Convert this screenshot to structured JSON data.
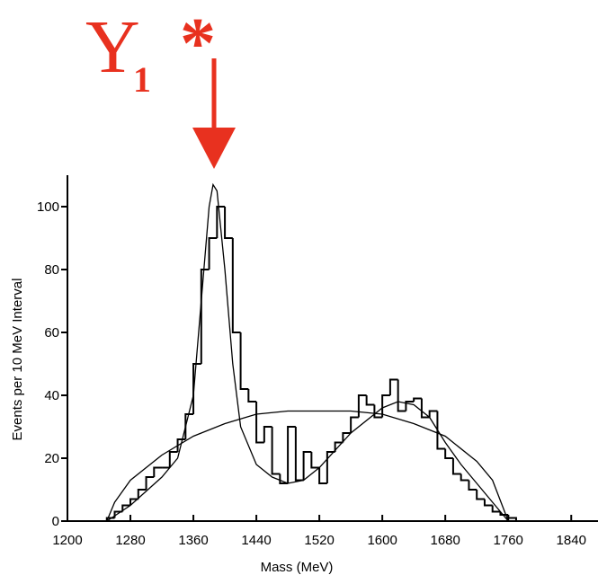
{
  "chart_data": {
    "type": "histogram",
    "annotation": {
      "letter": "Y",
      "subscript": "1",
      "star": "*"
    },
    "x_label": "Mass (MeV)",
    "y_label": "Events per 10 MeV Interval",
    "bins": [
      1250,
      1260,
      1270,
      1280,
      1290,
      1300,
      1310,
      1320,
      1330,
      1340,
      1350,
      1360,
      1370,
      1380,
      1390,
      1400,
      1410,
      1420,
      1430,
      1440,
      1450,
      1460,
      1470,
      1480,
      1490,
      1500,
      1510,
      1520,
      1530,
      1540,
      1550,
      1560,
      1570,
      1580,
      1590,
      1600,
      1610,
      1620,
      1630,
      1640,
      1650,
      1660,
      1670,
      1680,
      1690,
      1700,
      1710,
      1720,
      1730,
      1740,
      1750,
      1760,
      1770
    ],
    "counts": [
      1,
      3,
      5,
      7,
      10,
      14,
      17,
      17,
      22,
      26,
      34,
      50,
      80,
      90,
      100,
      90,
      60,
      42,
      38,
      25,
      30,
      15,
      12,
      30,
      13,
      22,
      17,
      12,
      22,
      25,
      28,
      33,
      40,
      37,
      33,
      40,
      45,
      35,
      38,
      39,
      33,
      35,
      23,
      20,
      15,
      13,
      10,
      7,
      5,
      3,
      2,
      1
    ],
    "color": "#000000",
    "curves": [
      {
        "x": [
          1250,
          1260,
          1280,
          1320,
          1360,
          1400,
          1440,
          1480,
          1520,
          1560,
          1600,
          1640,
          1680,
          1720,
          1740,
          1760
        ],
        "values": [
          0,
          6,
          13,
          21,
          27,
          31,
          34,
          35,
          35,
          35,
          34,
          31,
          27,
          19,
          13,
          0
        ]
      },
      {
        "x": [
          1250,
          1280,
          1320,
          1340,
          1360,
          1370,
          1380,
          1385,
          1390,
          1400,
          1410,
          1420,
          1440,
          1460,
          1480,
          1500,
          1520,
          1560,
          1600,
          1620,
          1640,
          1660,
          1680,
          1700,
          1720,
          1740,
          1760
        ],
        "values": [
          0,
          5,
          14,
          20,
          40,
          70,
          100,
          107,
          105,
          80,
          50,
          30,
          18,
          14,
          12,
          13,
          17,
          28,
          36,
          38,
          37,
          33,
          25,
          18,
          12,
          6,
          0
        ]
      }
    ],
    "annotation_color": "#e8311f",
    "xlim": [
      1200,
      1874
    ],
    "ylim": [
      0,
      110
    ],
    "xticks": [
      1200,
      1280,
      1360,
      1440,
      1520,
      1600,
      1680,
      1760,
      1840
    ],
    "yticks": [
      0,
      20,
      40,
      60,
      80,
      100
    ]
  }
}
